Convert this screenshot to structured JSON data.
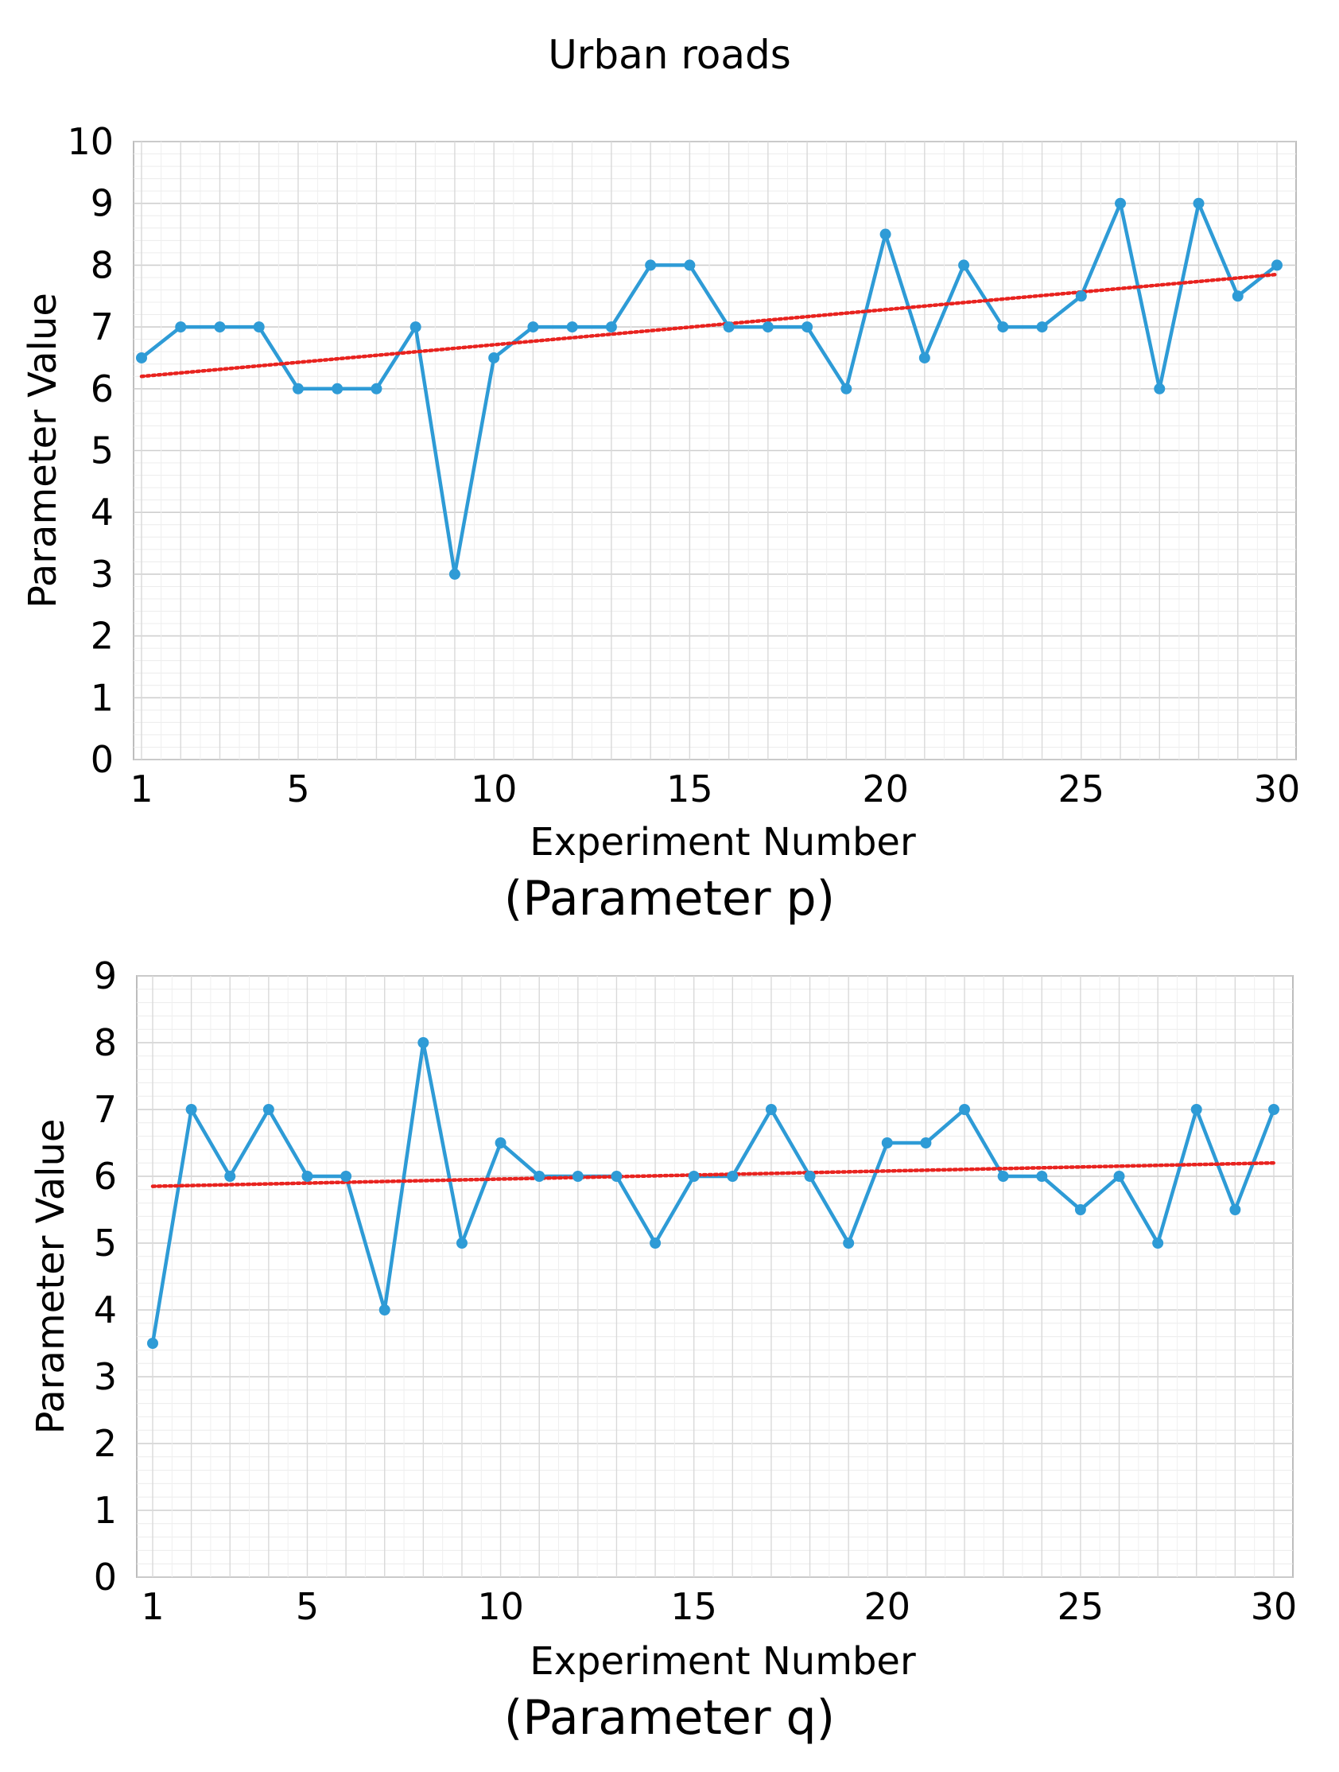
{
  "title": "Urban roads",
  "colors": {
    "series": "#2E9BD6",
    "trend": "#E8231F",
    "grid": "#DCDCDC",
    "axis": "#BDBDBD"
  },
  "chart_data": [
    {
      "type": "line",
      "caption": "(Parameter  p)",
      "xlabel": "Experiment Number",
      "ylabel": "Parameter Value",
      "xlim": [
        1,
        30
      ],
      "ylim": [
        0,
        10
      ],
      "x_ticks": [
        1,
        5,
        10,
        15,
        20,
        25,
        30
      ],
      "y_ticks": [
        0,
        1,
        2,
        3,
        4,
        5,
        6,
        7,
        8,
        9,
        10
      ],
      "grid": true,
      "x": [
        1,
        2,
        3,
        4,
        5,
        6,
        7,
        8,
        9,
        10,
        11,
        12,
        13,
        14,
        15,
        16,
        17,
        18,
        19,
        20,
        21,
        22,
        23,
        24,
        25,
        26,
        27,
        28,
        29,
        30
      ],
      "series": [
        {
          "name": "Parameter p",
          "values": [
            6.5,
            7,
            7,
            7,
            6,
            6,
            6,
            7,
            3,
            6.5,
            7,
            7,
            7,
            8,
            8,
            7,
            7,
            7,
            6,
            8.5,
            6.5,
            8,
            7,
            7,
            7.5,
            9,
            6,
            9,
            7.5,
            8
          ]
        }
      ],
      "trendline": {
        "type": "linear",
        "start": [
          1,
          6.2
        ],
        "end": [
          30,
          7.85
        ]
      }
    },
    {
      "type": "line",
      "caption": "(Parameter  q)",
      "xlabel": "Experiment Number",
      "ylabel": "Parameter Value",
      "xlim": [
        1,
        30
      ],
      "ylim": [
        0,
        9
      ],
      "x_ticks": [
        1,
        5,
        10,
        15,
        20,
        25,
        30
      ],
      "y_ticks": [
        0,
        1,
        2,
        3,
        4,
        5,
        6,
        7,
        8,
        9
      ],
      "grid": true,
      "x": [
        1,
        2,
        3,
        4,
        5,
        6,
        7,
        8,
        9,
        10,
        11,
        12,
        13,
        14,
        15,
        16,
        17,
        18,
        19,
        20,
        21,
        22,
        23,
        24,
        25,
        26,
        27,
        28,
        29,
        30
      ],
      "series": [
        {
          "name": "Parameter q",
          "values": [
            3.5,
            7,
            6,
            7,
            6,
            6,
            4,
            8,
            5,
            6.5,
            6,
            6,
            6,
            5,
            6,
            6,
            7,
            6,
            5,
            6.5,
            6.5,
            7,
            6,
            6,
            5.5,
            6,
            5,
            7,
            5.5,
            7
          ]
        }
      ],
      "trendline": {
        "type": "linear",
        "start": [
          1,
          5.85
        ],
        "end": [
          30,
          6.2
        ]
      }
    }
  ]
}
